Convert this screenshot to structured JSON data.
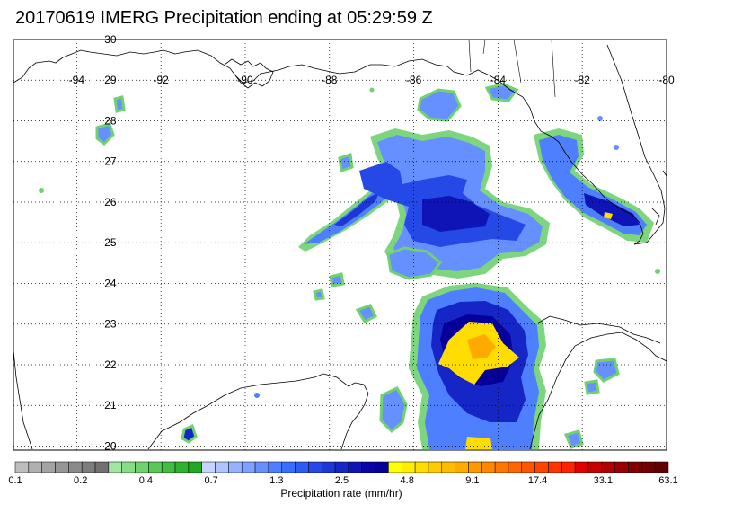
{
  "title": "20170619 IMERG Precipitation ending at 05:29:59 Z",
  "map": {
    "lon_min": -95.5,
    "lon_max": -80,
    "lat_min": 19.9,
    "lat_max": 30,
    "lon_ticks": [
      "-94",
      "-92",
      "-90",
      "-88",
      "-86",
      "-84",
      "-82",
      "-80"
    ],
    "lat_ticks": [
      "30",
      "29",
      "28",
      "27",
      "26",
      "25",
      "24",
      "23",
      "22",
      "21",
      "20"
    ],
    "gridlines": "dotted",
    "land_color": "#ffffff",
    "coastline_color": "#000000"
  },
  "colorbar": {
    "title": "Precipitation rate (mm/hr)",
    "labels": [
      "0.1",
      "0.2",
      "0.4",
      "0.7",
      "1.3",
      "2.5",
      "4.8",
      "9.1",
      "17.4",
      "33.1",
      "63.1"
    ],
    "colors": [
      "#bdbdbd",
      "#b0b0b0",
      "#a3a3a3",
      "#969696",
      "#8a8a8a",
      "#7d7d7d",
      "#717171",
      "#a1e6a1",
      "#87dc87",
      "#6fd26f",
      "#58c858",
      "#41be41",
      "#2db42d",
      "#1faa1f",
      "#c6d4ff",
      "#aec3ff",
      "#96b2ff",
      "#7ea1ff",
      "#6690ff",
      "#4e7fff",
      "#366eff",
      "#2b5cf6",
      "#2449e6",
      "#1d37d6",
      "#1626c6",
      "#0f14b6",
      "#0a04a6",
      "#06009a",
      "#ffff00",
      "#ffee00",
      "#ffdd00",
      "#ffcc00",
      "#ffbb00",
      "#ffaa00",
      "#ff9900",
      "#ff8800",
      "#ff7700",
      "#ff6600",
      "#ff5500",
      "#ff4400",
      "#ff3300",
      "#ff2200",
      "#e00000",
      "#c80000",
      "#b00000",
      "#980000",
      "#800000",
      "#700000",
      "#600000"
    ]
  }
}
